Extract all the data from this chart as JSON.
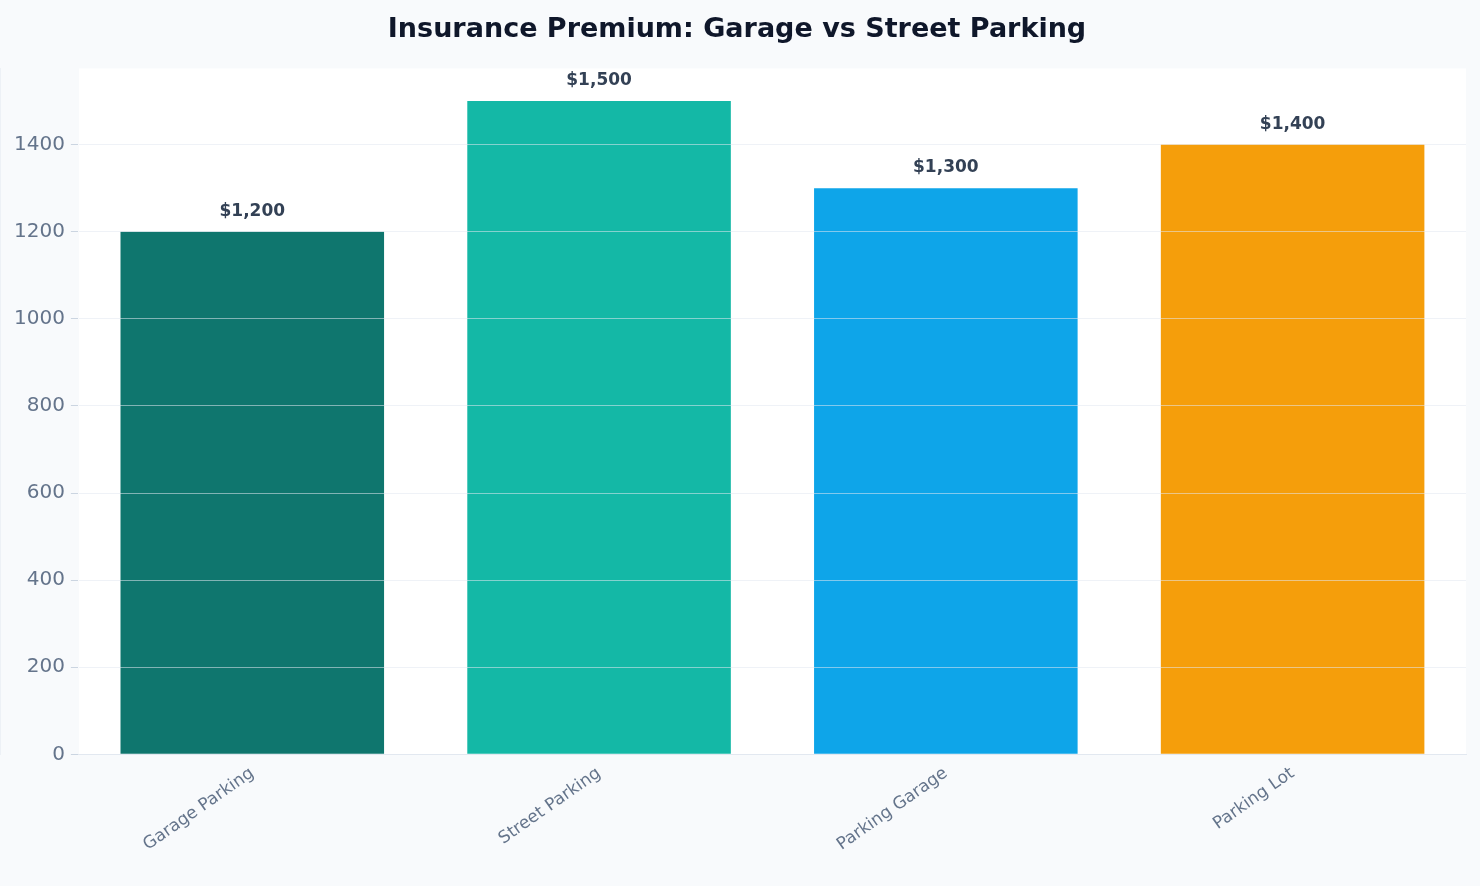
{
  "chart_data": {
    "type": "bar",
    "title": "Insurance Premium: Garage vs Street Parking",
    "categories": [
      "Garage Parking",
      "Street Parking",
      "Parking Garage",
      "Parking Lot"
    ],
    "values": [
      1200,
      1500,
      1300,
      1400
    ],
    "colors": [
      "#0f766e",
      "#14b8a6",
      "#0ea5e9",
      "#f59e0b"
    ],
    "value_labels": [
      "$1,200",
      "$1,500",
      "$1,300",
      "$1,400"
    ],
    "ylim": [
      0,
      1575
    ],
    "yticks": [
      0,
      200,
      400,
      600,
      800,
      1000,
      1200,
      1400
    ],
    "grid": "y",
    "legend": false
  }
}
